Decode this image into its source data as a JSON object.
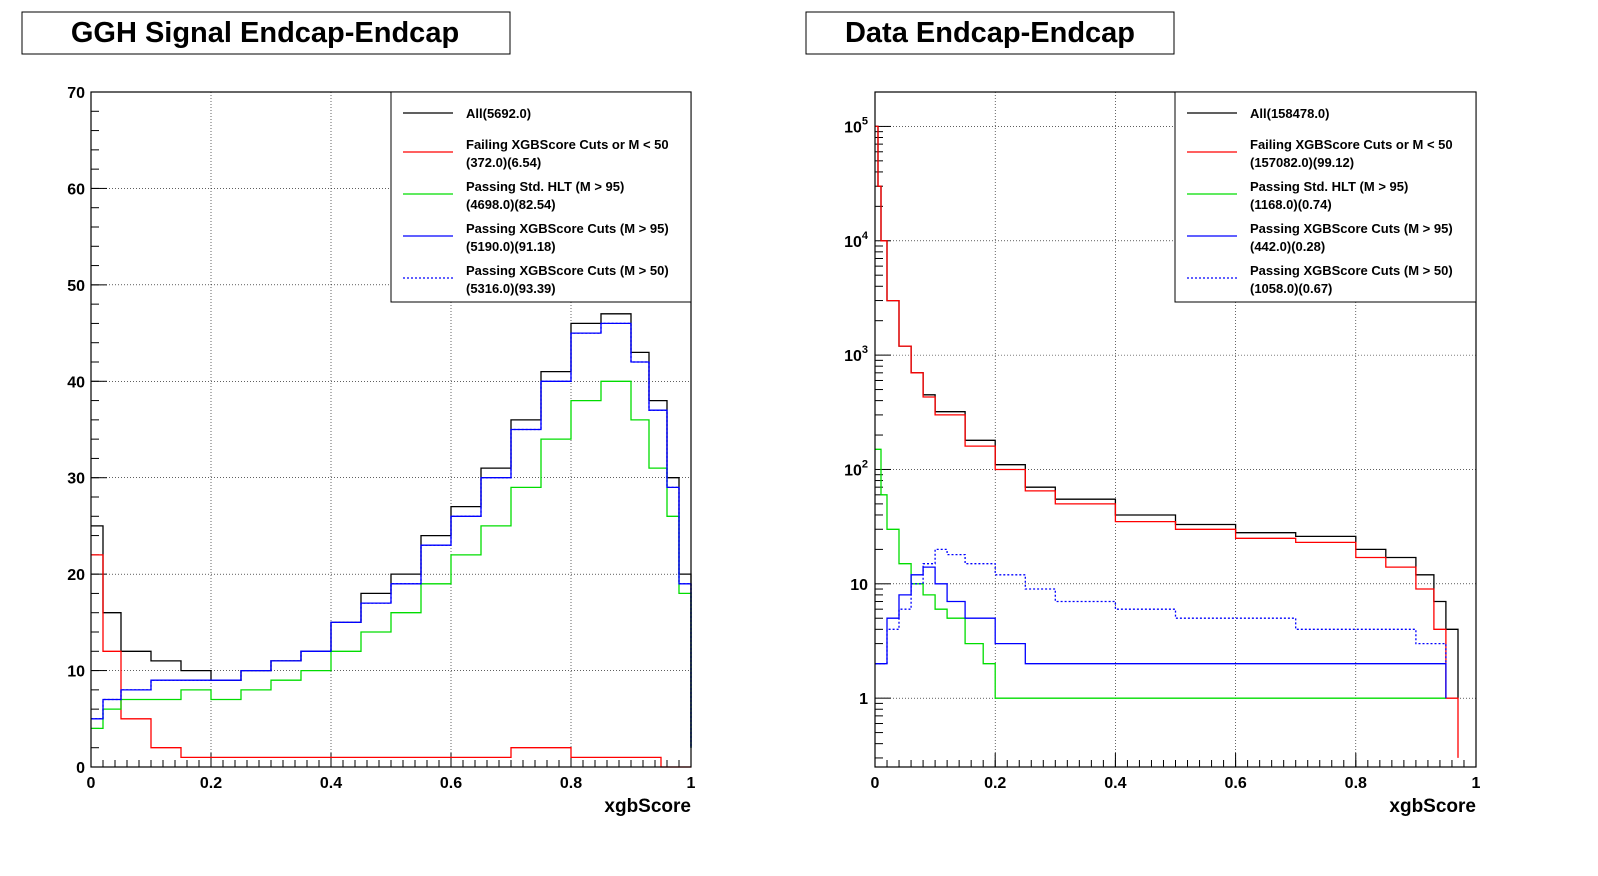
{
  "colors": {
    "all": "#000000",
    "failing": "#ff0000",
    "passing_std_hlt": "#00dd00",
    "passing_xgb_m95": "#0000ff",
    "passing_xgb_m50": "#0000ff"
  },
  "chart_data": [
    {
      "type": "line",
      "title": "GGH Signal Endcap-Endcap",
      "xlabel": "xgbScore",
      "ylabel": "",
      "xlim": [
        0,
        1
      ],
      "ylim": [
        0,
        70
      ],
      "log_y": false,
      "grid": true,
      "legend_position": "top-right",
      "x_ticks": [
        "0",
        "0.2",
        "0.4",
        "0.6",
        "0.8",
        "1"
      ],
      "y_ticks": [
        "0",
        "10",
        "20",
        "30",
        "40",
        "50",
        "60",
        "70"
      ],
      "legend": [
        {
          "key": "all",
          "line1": "All(5692.0)",
          "line2": ""
        },
        {
          "key": "failing",
          "line1": "Failing XGBScore Cuts or M < 50",
          "line2": "(372.0)(6.54)"
        },
        {
          "key": "passing_std_hlt",
          "line1": "Passing Std. HLT (M > 95)",
          "line2": "(4698.0)(82.54)"
        },
        {
          "key": "passing_xgb_m95",
          "line1": "Passing XGBScore Cuts (M > 95)",
          "line2": "(5190.0)(91.18)"
        },
        {
          "key": "passing_xgb_m50",
          "line1": "Passing XGBScore Cuts (M > 50)",
          "line2": "(5316.0)(93.39)"
        }
      ],
      "series": [
        {
          "key": "all",
          "x": [
            0,
            0.02,
            0.05,
            0.1,
            0.15,
            0.2,
            0.25,
            0.3,
            0.35,
            0.4,
            0.45,
            0.5,
            0.55,
            0.6,
            0.65,
            0.7,
            0.75,
            0.8,
            0.85,
            0.9,
            0.93,
            0.96,
            0.98,
            1.0
          ],
          "y": [
            25,
            16,
            12,
            11,
            10,
            9,
            10,
            11,
            12,
            15,
            18,
            20,
            24,
            27,
            31,
            36,
            41,
            46,
            47,
            43,
            38,
            30,
            20,
            2
          ]
        },
        {
          "key": "failing",
          "x": [
            0,
            0.02,
            0.05,
            0.1,
            0.15,
            0.2,
            0.3,
            0.4,
            0.5,
            0.6,
            0.7,
            0.8,
            0.9,
            0.95,
            1.0
          ],
          "y": [
            22,
            12,
            5,
            2,
            1,
            1,
            1,
            1,
            1,
            1,
            2,
            1,
            1,
            0,
            0
          ]
        },
        {
          "key": "passing_std_hlt",
          "x": [
            0,
            0.02,
            0.05,
            0.1,
            0.15,
            0.2,
            0.25,
            0.3,
            0.35,
            0.4,
            0.45,
            0.5,
            0.55,
            0.6,
            0.65,
            0.7,
            0.75,
            0.8,
            0.85,
            0.9,
            0.93,
            0.96,
            0.98,
            1.0
          ],
          "y": [
            4,
            6,
            7,
            7,
            8,
            7,
            8,
            9,
            10,
            12,
            14,
            16,
            19,
            22,
            25,
            29,
            34,
            38,
            40,
            36,
            31,
            26,
            18,
            2
          ]
        },
        {
          "key": "passing_xgb_m95",
          "x": [
            0,
            0.02,
            0.05,
            0.1,
            0.15,
            0.2,
            0.25,
            0.3,
            0.35,
            0.4,
            0.45,
            0.5,
            0.55,
            0.6,
            0.65,
            0.7,
            0.75,
            0.8,
            0.85,
            0.9,
            0.93,
            0.96,
            0.98,
            1.0
          ],
          "y": [
            5,
            7,
            8,
            9,
            9,
            9,
            10,
            11,
            12,
            15,
            17,
            19,
            23,
            26,
            30,
            35,
            40,
            45,
            46,
            42,
            37,
            29,
            19,
            2
          ]
        },
        {
          "key": "passing_xgb_m50",
          "x": [
            0,
            0.02,
            0.05,
            0.1,
            0.15,
            0.2,
            0.25,
            0.3,
            0.35,
            0.4,
            0.45,
            0.5,
            0.55,
            0.6,
            0.65,
            0.7,
            0.75,
            0.8,
            0.85,
            0.9,
            0.93,
            0.96,
            0.98,
            1.0
          ],
          "y": [
            5,
            7,
            8,
            9,
            9,
            9,
            10,
            11,
            12,
            15,
            17,
            19,
            23,
            26,
            30,
            35,
            40,
            45,
            46,
            42,
            37,
            29,
            19,
            2
          ]
        }
      ]
    },
    {
      "type": "line",
      "title": "Data Endcap-Endcap",
      "xlabel": "xgbScore",
      "ylabel": "",
      "xlim": [
        0,
        1
      ],
      "ylim": [
        0.25,
        200000
      ],
      "log_y": true,
      "grid": true,
      "legend_position": "top-right",
      "x_ticks": [
        "0",
        "0.2",
        "0.4",
        "0.6",
        "0.8",
        "1"
      ],
      "y_ticks": [
        {
          "value": 1,
          "base": "1",
          "exp": ""
        },
        {
          "value": 10,
          "base": "10",
          "exp": ""
        },
        {
          "value": 100,
          "base": "10",
          "exp": "2"
        },
        {
          "value": 1000,
          "base": "10",
          "exp": "3"
        },
        {
          "value": 10000,
          "base": "10",
          "exp": "4"
        },
        {
          "value": 100000,
          "base": "10",
          "exp": "5"
        }
      ],
      "legend": [
        {
          "key": "all",
          "line1": "All(158478.0)",
          "line2": ""
        },
        {
          "key": "failing",
          "line1": "Failing XGBScore Cuts or M < 50",
          "line2": "(157082.0)(99.12)"
        },
        {
          "key": "passing_std_hlt",
          "line1": "Passing Std. HLT (M > 95)",
          "line2": "(1168.0)(0.74)"
        },
        {
          "key": "passing_xgb_m95",
          "line1": "Passing XGBScore Cuts (M > 95)",
          "line2": "(442.0)(0.28)"
        },
        {
          "key": "passing_xgb_m50",
          "line1": "Passing XGBScore Cuts (M > 50)",
          "line2": "(1058.0)(0.67)"
        }
      ],
      "series": [
        {
          "key": "all",
          "x": [
            0,
            0.005,
            0.01,
            0.02,
            0.04,
            0.06,
            0.08,
            0.1,
            0.15,
            0.2,
            0.25,
            0.3,
            0.4,
            0.5,
            0.6,
            0.7,
            0.8,
            0.85,
            0.9,
            0.93,
            0.95,
            0.97
          ],
          "y": [
            100000,
            30000,
            10000,
            3000,
            1200,
            700,
            450,
            320,
            180,
            110,
            70,
            55,
            40,
            33,
            28,
            26,
            20,
            17,
            12,
            7,
            4,
            1
          ]
        },
        {
          "key": "failing",
          "x": [
            0,
            0.005,
            0.01,
            0.02,
            0.04,
            0.06,
            0.08,
            0.1,
            0.15,
            0.2,
            0.25,
            0.3,
            0.4,
            0.5,
            0.6,
            0.7,
            0.8,
            0.85,
            0.9,
            0.93,
            0.95,
            0.97
          ],
          "y": [
            100000,
            30000,
            10000,
            3000,
            1200,
            700,
            430,
            300,
            160,
            100,
            65,
            50,
            35,
            30,
            25,
            23,
            17,
            14,
            9,
            4,
            1,
            0.3
          ]
        },
        {
          "key": "passing_std_hlt",
          "x": [
            0,
            0.01,
            0.02,
            0.04,
            0.06,
            0.08,
            0.1,
            0.12,
            0.15,
            0.18,
            0.2,
            0.25,
            0.3,
            0.4,
            0.5,
            0.6,
            0.7,
            0.8,
            0.9,
            0.95
          ],
          "y": [
            150,
            60,
            30,
            15,
            10,
            8,
            6,
            5,
            3,
            2,
            1,
            1,
            1,
            1,
            1,
            1,
            1,
            1,
            1,
            1
          ]
        },
        {
          "key": "passing_xgb_m95",
          "x": [
            0,
            0.02,
            0.04,
            0.06,
            0.08,
            0.1,
            0.12,
            0.15,
            0.2,
            0.25,
            0.3,
            0.4,
            0.5,
            0.6,
            0.7,
            0.8,
            0.9,
            0.95
          ],
          "y": [
            2,
            5,
            8,
            12,
            14,
            10,
            7,
            5,
            3,
            2,
            2,
            2,
            2,
            2,
            2,
            2,
            2,
            1
          ]
        },
        {
          "key": "passing_xgb_m50",
          "x": [
            0,
            0.02,
            0.04,
            0.06,
            0.08,
            0.1,
            0.12,
            0.15,
            0.2,
            0.25,
            0.3,
            0.4,
            0.5,
            0.6,
            0.7,
            0.8,
            0.9,
            0.95
          ],
          "y": [
            2,
            4,
            6,
            10,
            15,
            20,
            18,
            15,
            12,
            9,
            7,
            6,
            5,
            5,
            4,
            4,
            3,
            2
          ]
        }
      ]
    }
  ]
}
